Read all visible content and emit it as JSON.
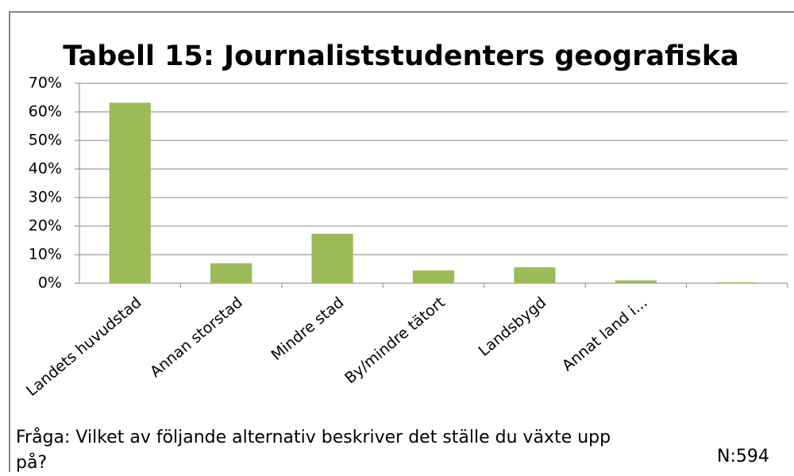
{
  "chart_data": {
    "type": "bar",
    "title": "Tabell 15: Journaliststudenters geografiska",
    "categories": [
      "Landets huvudstad",
      "Annan storstad",
      "Mindre stad",
      "By/mindre tätort",
      "Landsbygd",
      "Annat land i...",
      null
    ],
    "values": [
      63.2,
      7,
      17.3,
      4.5,
      5.6,
      1,
      0.3
    ],
    "color": "#9bbb59",
    "ylim": [
      0,
      70
    ],
    "yticks": [
      {
        "value": 0,
        "label": "0%"
      },
      {
        "value": 10,
        "label": "10%"
      },
      {
        "value": 20,
        "label": "20%"
      },
      {
        "value": 30,
        "label": "30%"
      },
      {
        "value": 40,
        "label": "40%"
      },
      {
        "value": 50,
        "label": "50%"
      },
      {
        "value": 60,
        "label": "60%"
      },
      {
        "value": 70,
        "label": "70%"
      }
    ],
    "grid": true,
    "note": "Fråga: Vilket av följande alternativ beskriver det ställe du växte upp på?",
    "sample": "N:594"
  }
}
